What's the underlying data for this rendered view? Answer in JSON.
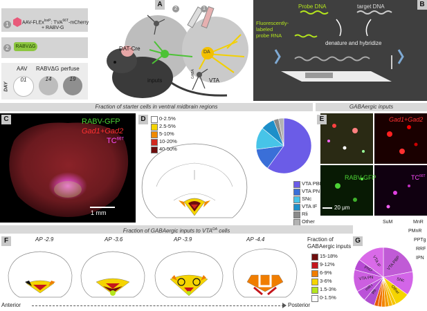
{
  "panels": {
    "A": {
      "label": "A",
      "step1_num": "1",
      "step1_text": "AAV-FLEx",
      "step1_sup": "loxP",
      "step1_text2": ": TVA",
      "step1_sup2": "66T",
      "step1_text3": "-mCherry",
      "step1_line2": "+ RABV-G",
      "step2_num": "2",
      "step2_text": "RABVΔG",
      "day_label": "DAY",
      "timeline_headers": [
        "AAV",
        "RABVΔG",
        "perfuse"
      ],
      "timeline_days": [
        "01",
        "14",
        "19"
      ],
      "mouse_label": "DAT-Cre",
      "circle_inputs": "inputs",
      "circle_vta": "VTA",
      "da_label": "DA",
      "gaba_label": "GABA",
      "syringe_nums": [
        "2",
        "1"
      ]
    },
    "B": {
      "label": "B",
      "probe_dna": "Probe DNA",
      "target_dna": "target DNA",
      "probe_rna": "Fluorescently-\nlabeled\nprobe RNA",
      "step_text": "denature and hybridize"
    },
    "C": {
      "label": "C",
      "legend_rabv": "RABV-GFP",
      "legend_gad": "Gad1+Gad2",
      "legend_tc": "TC",
      "legend_tc_sup": "66T",
      "scale": "1 mm"
    },
    "D": {
      "label": "D",
      "header": "Fraction of starter cells in ventral midbrain regions",
      "bins": [
        {
          "label": "0-2.5%",
          "color": "#ffffff"
        },
        {
          "label": "2.5-5%",
          "color": "#f5d400"
        },
        {
          "label": "5-10%",
          "color": "#f08a00"
        },
        {
          "label": "10-20%",
          "color": "#d2281e"
        },
        {
          "label": "40-50%",
          "color": "#6e0d0d"
        }
      ]
    },
    "E": {
      "label": "E",
      "header": "GABAergic inputs",
      "q_gad": "Gad1+Gad2",
      "q_rabv": "RABV-GFP",
      "q_tc": "TC",
      "q_tc_sup": "66T",
      "scale": "20 μm"
    },
    "F": {
      "label": "F",
      "header": "Fraction of GABAergic inputs to VTA",
      "header_sup": "DA",
      "header_end": " cells",
      "sections": [
        "AP -2.9",
        "AP -3.6",
        "AP -3.9",
        "AP -4.4"
      ],
      "legend_title": "Fraction of\nGABAergic inputs",
      "bins": [
        {
          "label": "15-18%",
          "color": "#6e0d0d"
        },
        {
          "label": "9-12%",
          "color": "#c4161c"
        },
        {
          "label": "6-9%",
          "color": "#f07d00"
        },
        {
          "label": "3-6%",
          "color": "#f5d400"
        },
        {
          "label": "1.5-3%",
          "color": "#b5e61d"
        },
        {
          "label": "0-1.5%",
          "color": "#ffffff"
        }
      ],
      "axis_left": "Anterior",
      "axis_right": "Posterior"
    },
    "G": {
      "label": "G",
      "outside_labels": [
        "SuM",
        "MnR",
        "PMnR",
        "PPTg",
        "RRF",
        "IPN"
      ]
    }
  },
  "chart_data": [
    {
      "type": "pie",
      "panel": "D",
      "categories": [
        "VTA PBP",
        "VTA PN",
        "SNc",
        "VTA IF",
        "Rli",
        "Other"
      ],
      "values": [
        60,
        13,
        13,
        8,
        3,
        3
      ],
      "colors": [
        "#6b5ce7",
        "#3a6fd8",
        "#47c4e8",
        "#1d8fc9",
        "#8a8a8a",
        "#b3b3b3"
      ],
      "legend_position": "below-right"
    },
    {
      "type": "pie",
      "panel": "G",
      "categories": [
        "VTA PBP",
        "SNc",
        "Other",
        "SuM",
        "MnR",
        "PMnR",
        "PPTg",
        "RRF",
        "IPN",
        "Rli",
        "mRT",
        "VTA PN",
        "PnO",
        "VTA IF"
      ],
      "values": [
        22,
        13,
        8,
        2,
        2,
        2,
        2,
        2,
        2,
        6,
        6,
        12,
        6,
        15
      ],
      "colors": [
        "#c05bd6",
        "#d365e8",
        "#f5d400",
        "#f7c400",
        "#f5b400",
        "#f39a00",
        "#f28400",
        "#ee6e00",
        "#e85a00",
        "#b04dd0",
        "#ba52d8",
        "#cc5fe0",
        "#b74ad4",
        "#d96ae8"
      ],
      "inside_labels": [
        "VTA PBP",
        "SNc",
        "Other",
        "Rli",
        "mRT",
        "VTA PN",
        "PnO",
        "VTA IF"
      ]
    }
  ]
}
